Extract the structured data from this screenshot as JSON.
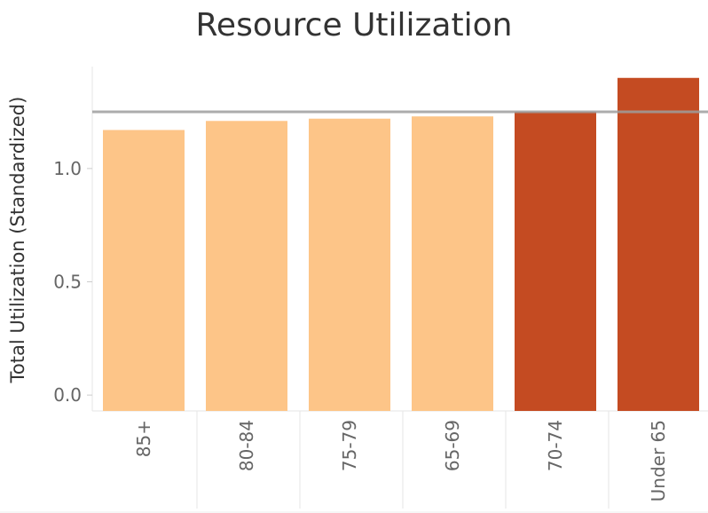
{
  "chart_data": {
    "type": "bar",
    "title": "Resource Utilization",
    "xlabel": "",
    "ylabel": "Total Utilization (Standardized)",
    "categories": [
      "85+",
      "80-84",
      "75-79",
      "65-69",
      "70-74",
      "Under 65"
    ],
    "values": [
      1.17,
      1.21,
      1.22,
      1.23,
      1.25,
      1.4
    ],
    "bar_colors": [
      "#fdc588",
      "#fdc588",
      "#fdc588",
      "#fdc588",
      "#c44b22",
      "#c44b22"
    ],
    "reference_line": 1.25,
    "reference_line_color": "#9e9e9e",
    "yticks": [
      0.0,
      0.5,
      1.0
    ],
    "ytick_labels": [
      "0.0",
      "0.5",
      "1.0"
    ],
    "ylim": [
      -0.07,
      1.45
    ],
    "grid": false
  }
}
